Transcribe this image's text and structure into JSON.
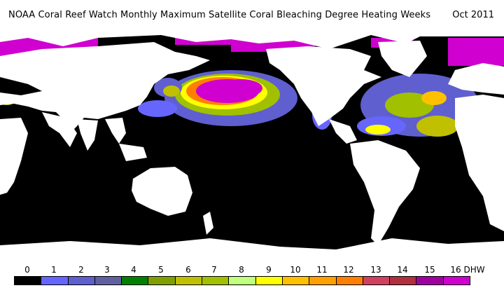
{
  "header": {
    "title": "NOAA Coral Reef Watch Monthly Maximum Satellite Coral Bleaching Degree Heating Weeks",
    "date": "Oct 2011"
  },
  "map": {
    "background_ocean": "#000000",
    "land_color": "#ffffff"
  },
  "legend": {
    "labels": [
      "0",
      "1",
      "2",
      "3",
      "4",
      "5",
      "6",
      "7",
      "8",
      "9",
      "10",
      "11",
      "12",
      "13",
      "14",
      "15",
      "16 DHW"
    ],
    "colors": [
      "#000000",
      "#6666ff",
      "#5f5fcf",
      "#6060a0",
      "#008000",
      "#80a000",
      "#c0c000",
      "#a0c000",
      "#c0ff80",
      "#ffff00",
      "#ffc000",
      "#ffa000",
      "#ff8000",
      "#d04060",
      "#b03040",
      "#a000a0",
      "#d000d0"
    ]
  }
}
